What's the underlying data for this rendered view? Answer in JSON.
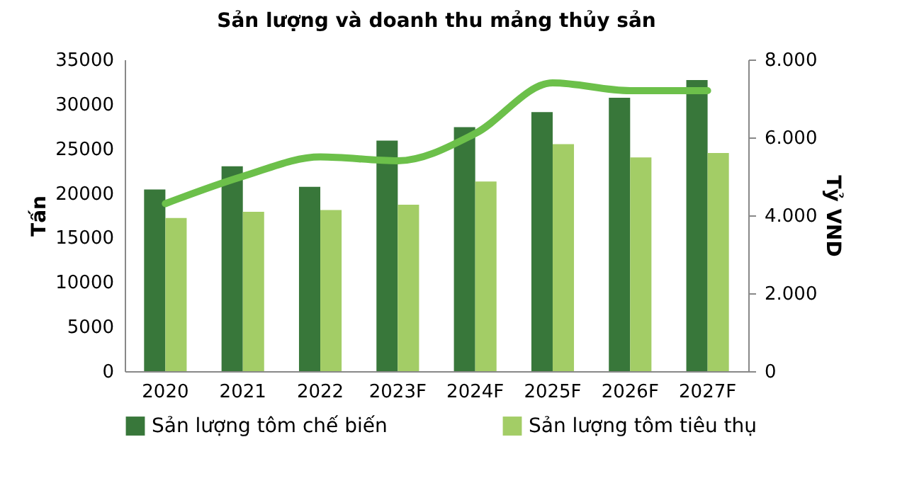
{
  "chart_data": {
    "type": "bar",
    "title": "Sản lượng và doanh thu mảng thủy sản",
    "ylabel": "Tấn",
    "y2label": "Tỷ VND",
    "categories": [
      "2020",
      "2021",
      "2022",
      "2023F",
      "2024F",
      "2025F",
      "2026F",
      "2027F"
    ],
    "series": [
      {
        "name": "Sản lượng tôm chế biến",
        "color": "#38773a",
        "values": [
          20400,
          23000,
          20700,
          25900,
          27400,
          29100,
          30700,
          32700
        ]
      },
      {
        "name": "Sản lượng tôm tiêu thụ",
        "color": "#a3cd66",
        "values": [
          17200,
          17900,
          18100,
          18700,
          21300,
          25500,
          24000,
          24500
        ]
      },
      {
        "type": "line",
        "axis": "y2",
        "color": "#6cc04a",
        "values": [
          4300,
          5000,
          5500,
          5400,
          6100,
          7400,
          7200,
          7200
        ]
      }
    ],
    "ylim": [
      0,
      35000
    ],
    "yticks": [
      0,
      5000,
      10000,
      15000,
      20000,
      25000,
      30000,
      35000
    ],
    "y2lim": [
      0,
      8000
    ],
    "y2ticks": [
      0,
      {
        "value": 2000,
        "label": "2.000"
      },
      {
        "value": 4000,
        "label": "4.000"
      },
      {
        "value": 6000,
        "label": "6.000"
      },
      {
        "value": 8000,
        "label": "8.000"
      }
    ],
    "legend": "bottom",
    "grid": false
  }
}
